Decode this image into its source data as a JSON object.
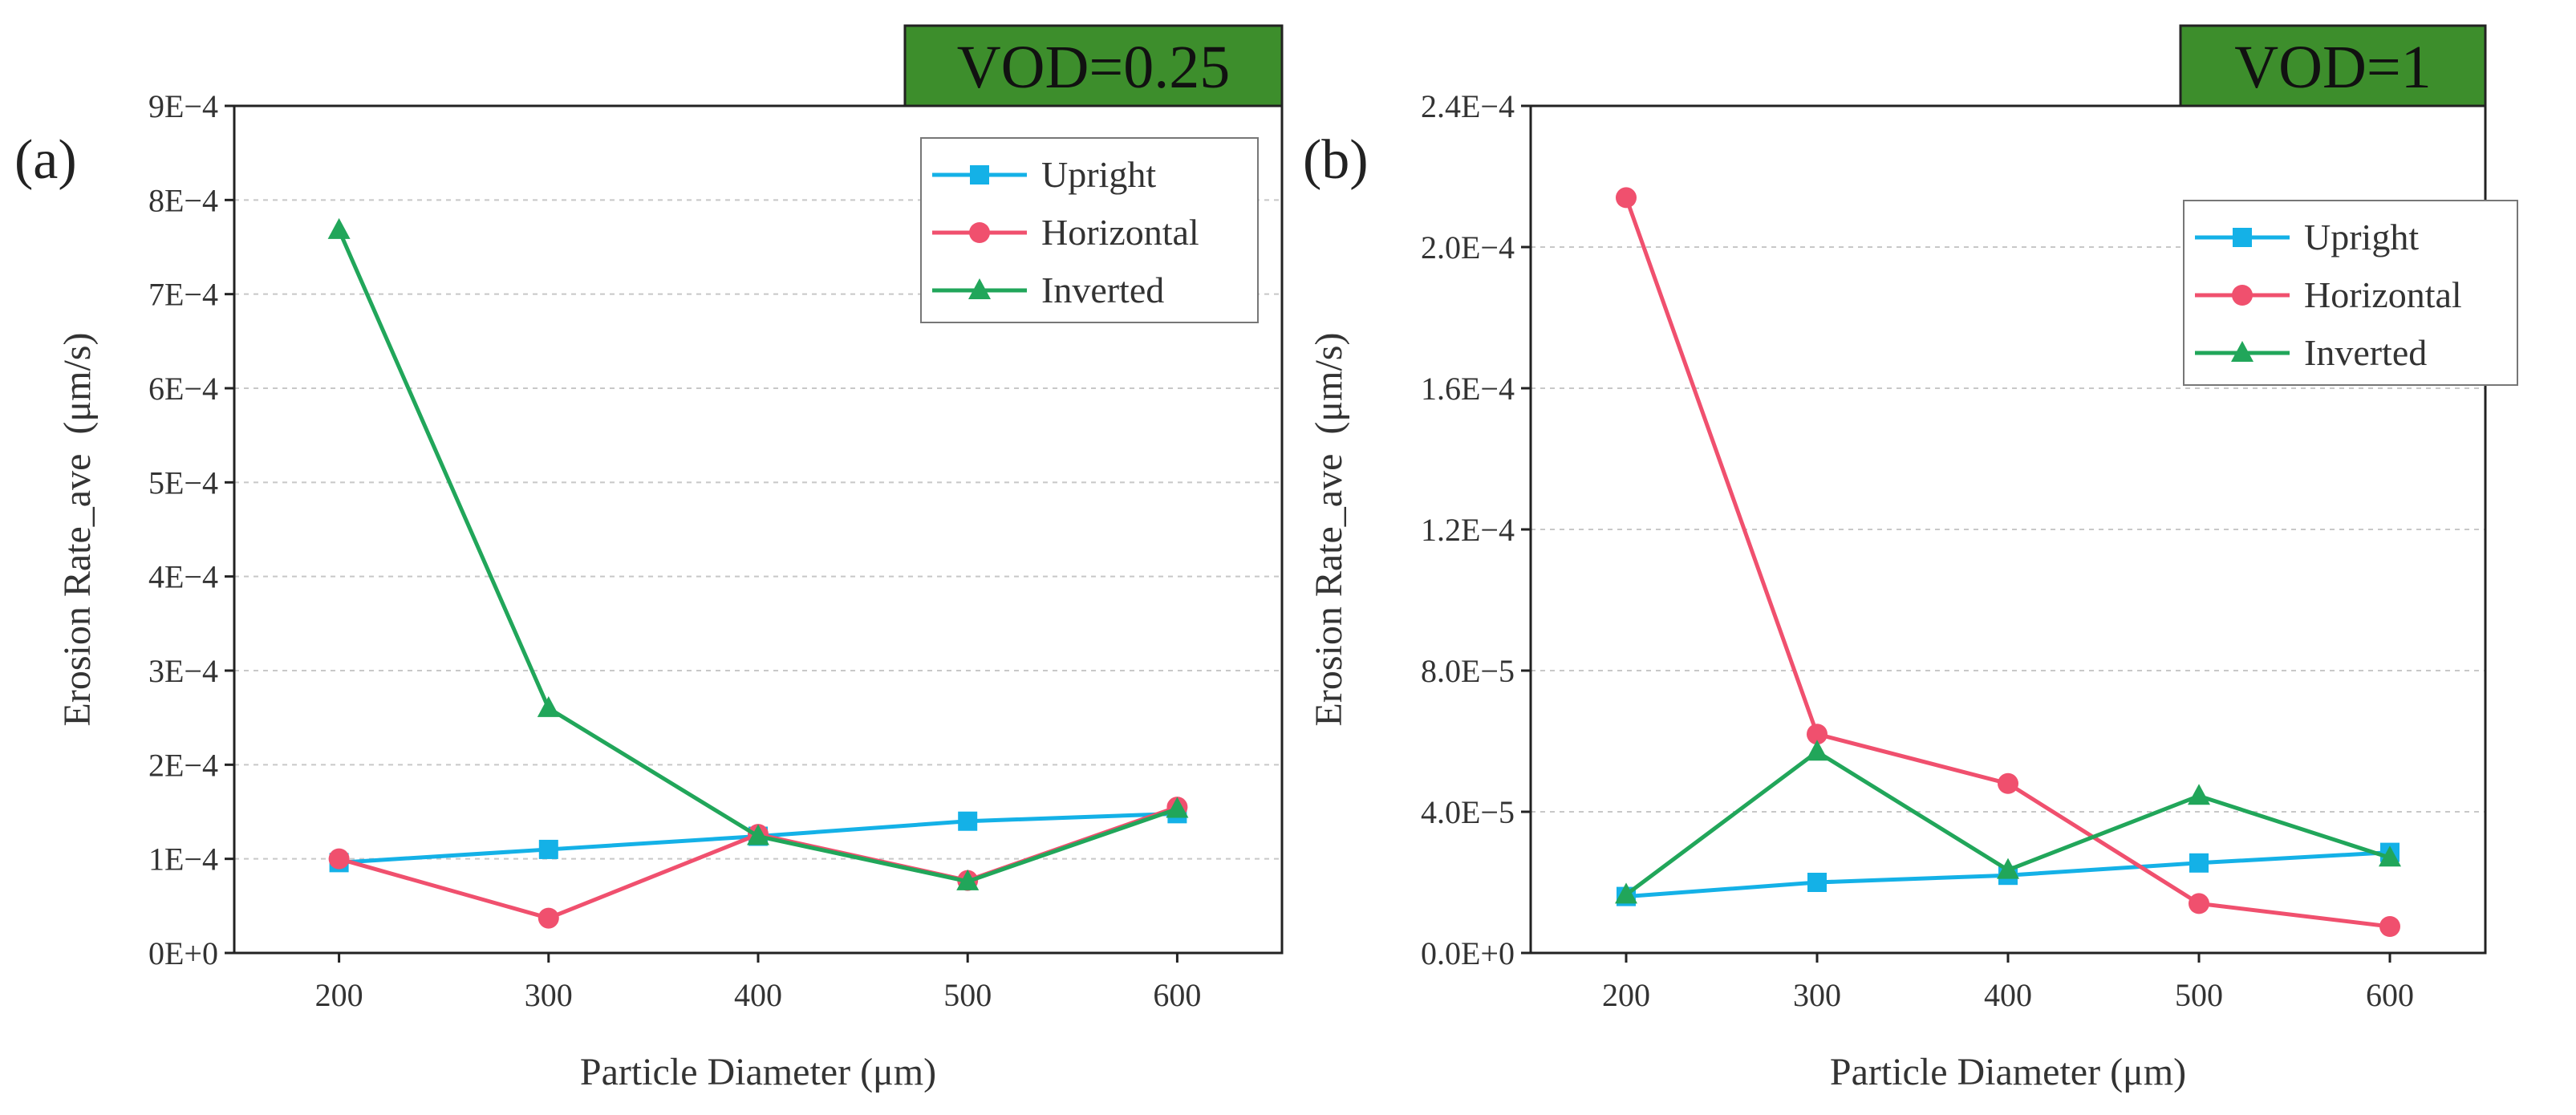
{
  "colors": {
    "Upright": "#14b1e7",
    "Horizontal": "#f0506e",
    "Inverted": "#21a65a",
    "banner_bg": "#3d8e2c"
  },
  "chart_data": [
    {
      "type": "line",
      "panel_label": "(a)",
      "banner": "VOD=0.25",
      "xlabel": "Particle Diameter (μm)",
      "ylabel": "Erosion Rate_ave  (μm/s)",
      "x": [
        200,
        300,
        400,
        500,
        600
      ],
      "xlim": [
        150,
        650
      ],
      "ylim": [
        0,
        0.0009
      ],
      "grid": "horizontal dashed",
      "legend_position": "top-right",
      "yticks": [
        {
          "value": 0,
          "label": "0E+0"
        },
        {
          "value": 0.0001,
          "label": "1E−4"
        },
        {
          "value": 0.0002,
          "label": "2E−4"
        },
        {
          "value": 0.0003,
          "label": "3E−4"
        },
        {
          "value": 0.0004,
          "label": "4E−4"
        },
        {
          "value": 0.0005,
          "label": "5E−4"
        },
        {
          "value": 0.0006,
          "label": "6E−4"
        },
        {
          "value": 0.0007,
          "label": "7E−4"
        },
        {
          "value": 0.0008,
          "label": "8E−4"
        },
        {
          "value": 0.0009,
          "label": "9E−4"
        }
      ],
      "xticks": [
        {
          "value": 200,
          "label": "200"
        },
        {
          "value": 300,
          "label": "300"
        },
        {
          "value": 400,
          "label": "400"
        },
        {
          "value": 500,
          "label": "500"
        },
        {
          "value": 600,
          "label": "600"
        }
      ],
      "series": [
        {
          "name": "Upright",
          "marker": "square",
          "values": [
            9.6e-05,
            0.00011,
            0.000124,
            0.00014,
            0.000148
          ]
        },
        {
          "name": "Horizontal",
          "marker": "circle",
          "values": [
            0.0001,
            3.7e-05,
            0.000126,
            7.7e-05,
            0.000155
          ]
        },
        {
          "name": "Inverted",
          "marker": "triangle",
          "values": [
            0.000768,
            0.00026,
            0.000124,
            7.6e-05,
            0.000153
          ]
        }
      ]
    },
    {
      "type": "line",
      "panel_label": "(b)",
      "banner": "VOD=1",
      "xlabel": "Particle Diameter (μm)",
      "ylabel": "Erosion Rate_ave  (μm/s)",
      "x": [
        200,
        300,
        400,
        500,
        600
      ],
      "xlim": [
        150,
        650
      ],
      "ylim": [
        0,
        0.00024
      ],
      "grid": "horizontal dashed",
      "legend_position": "upper-right",
      "yticks": [
        {
          "value": 0,
          "label": "0.0E+0"
        },
        {
          "value": 4e-05,
          "label": "4.0E−5"
        },
        {
          "value": 8e-05,
          "label": "8.0E−5"
        },
        {
          "value": 0.00012,
          "label": "1.2E−4"
        },
        {
          "value": 0.00016,
          "label": "1.6E−4"
        },
        {
          "value": 0.0002,
          "label": "2.0E−4"
        },
        {
          "value": 0.00024,
          "label": "2.4E−4"
        }
      ],
      "xticks": [
        {
          "value": 200,
          "label": "200"
        },
        {
          "value": 300,
          "label": "300"
        },
        {
          "value": 400,
          "label": "400"
        },
        {
          "value": 500,
          "label": "500"
        },
        {
          "value": 600,
          "label": "600"
        }
      ],
      "series": [
        {
          "name": "Upright",
          "marker": "square",
          "values": [
            1.6e-05,
            2e-05,
            2.2e-05,
            2.55e-05,
            2.85e-05
          ]
        },
        {
          "name": "Horizontal",
          "marker": "circle",
          "values": [
            0.000214,
            6.2e-05,
            4.8e-05,
            1.4e-05,
            7.5e-06
          ]
        },
        {
          "name": "Inverted",
          "marker": "triangle",
          "values": [
            1.65e-05,
            5.7e-05,
            2.35e-05,
            4.45e-05,
            2.7e-05
          ]
        }
      ]
    }
  ]
}
